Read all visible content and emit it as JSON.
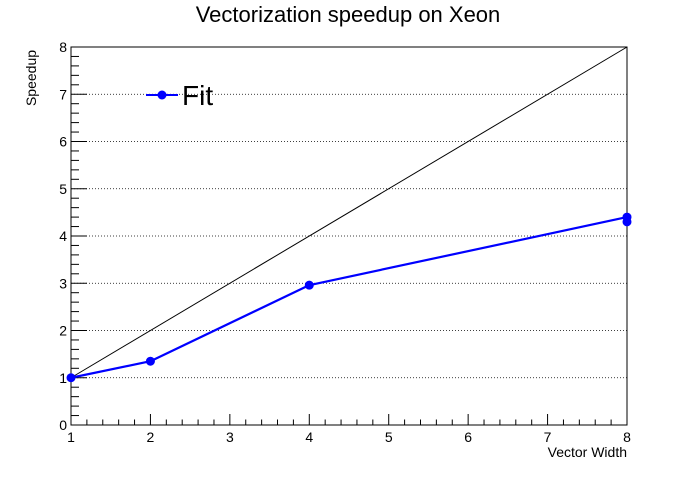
{
  "chart_data": {
    "type": "line",
    "title": "Vectorization speedup on Xeon",
    "xlabel": "Vector Width",
    "ylabel": "Speedup",
    "xlim": [
      1,
      8
    ],
    "ylim": [
      0,
      8
    ],
    "x_ticks": [
      1,
      2,
      3,
      4,
      5,
      6,
      7,
      8
    ],
    "y_ticks": [
      0,
      1,
      2,
      3,
      4,
      5,
      6,
      7,
      8
    ],
    "grid": {
      "y": true,
      "x": false,
      "style": "dotted"
    },
    "legend": {
      "position": "top-left",
      "entries": [
        "Fit"
      ]
    },
    "series": [
      {
        "name": "Fit",
        "color": "#0000ff",
        "marker": "circle",
        "x": [
          1,
          2,
          4,
          8,
          8
        ],
        "y": [
          1.0,
          1.35,
          2.96,
          4.4,
          4.3
        ]
      }
    ],
    "reference_line": {
      "color": "#000000",
      "x": [
        1,
        8
      ],
      "y": [
        1,
        8
      ]
    }
  }
}
